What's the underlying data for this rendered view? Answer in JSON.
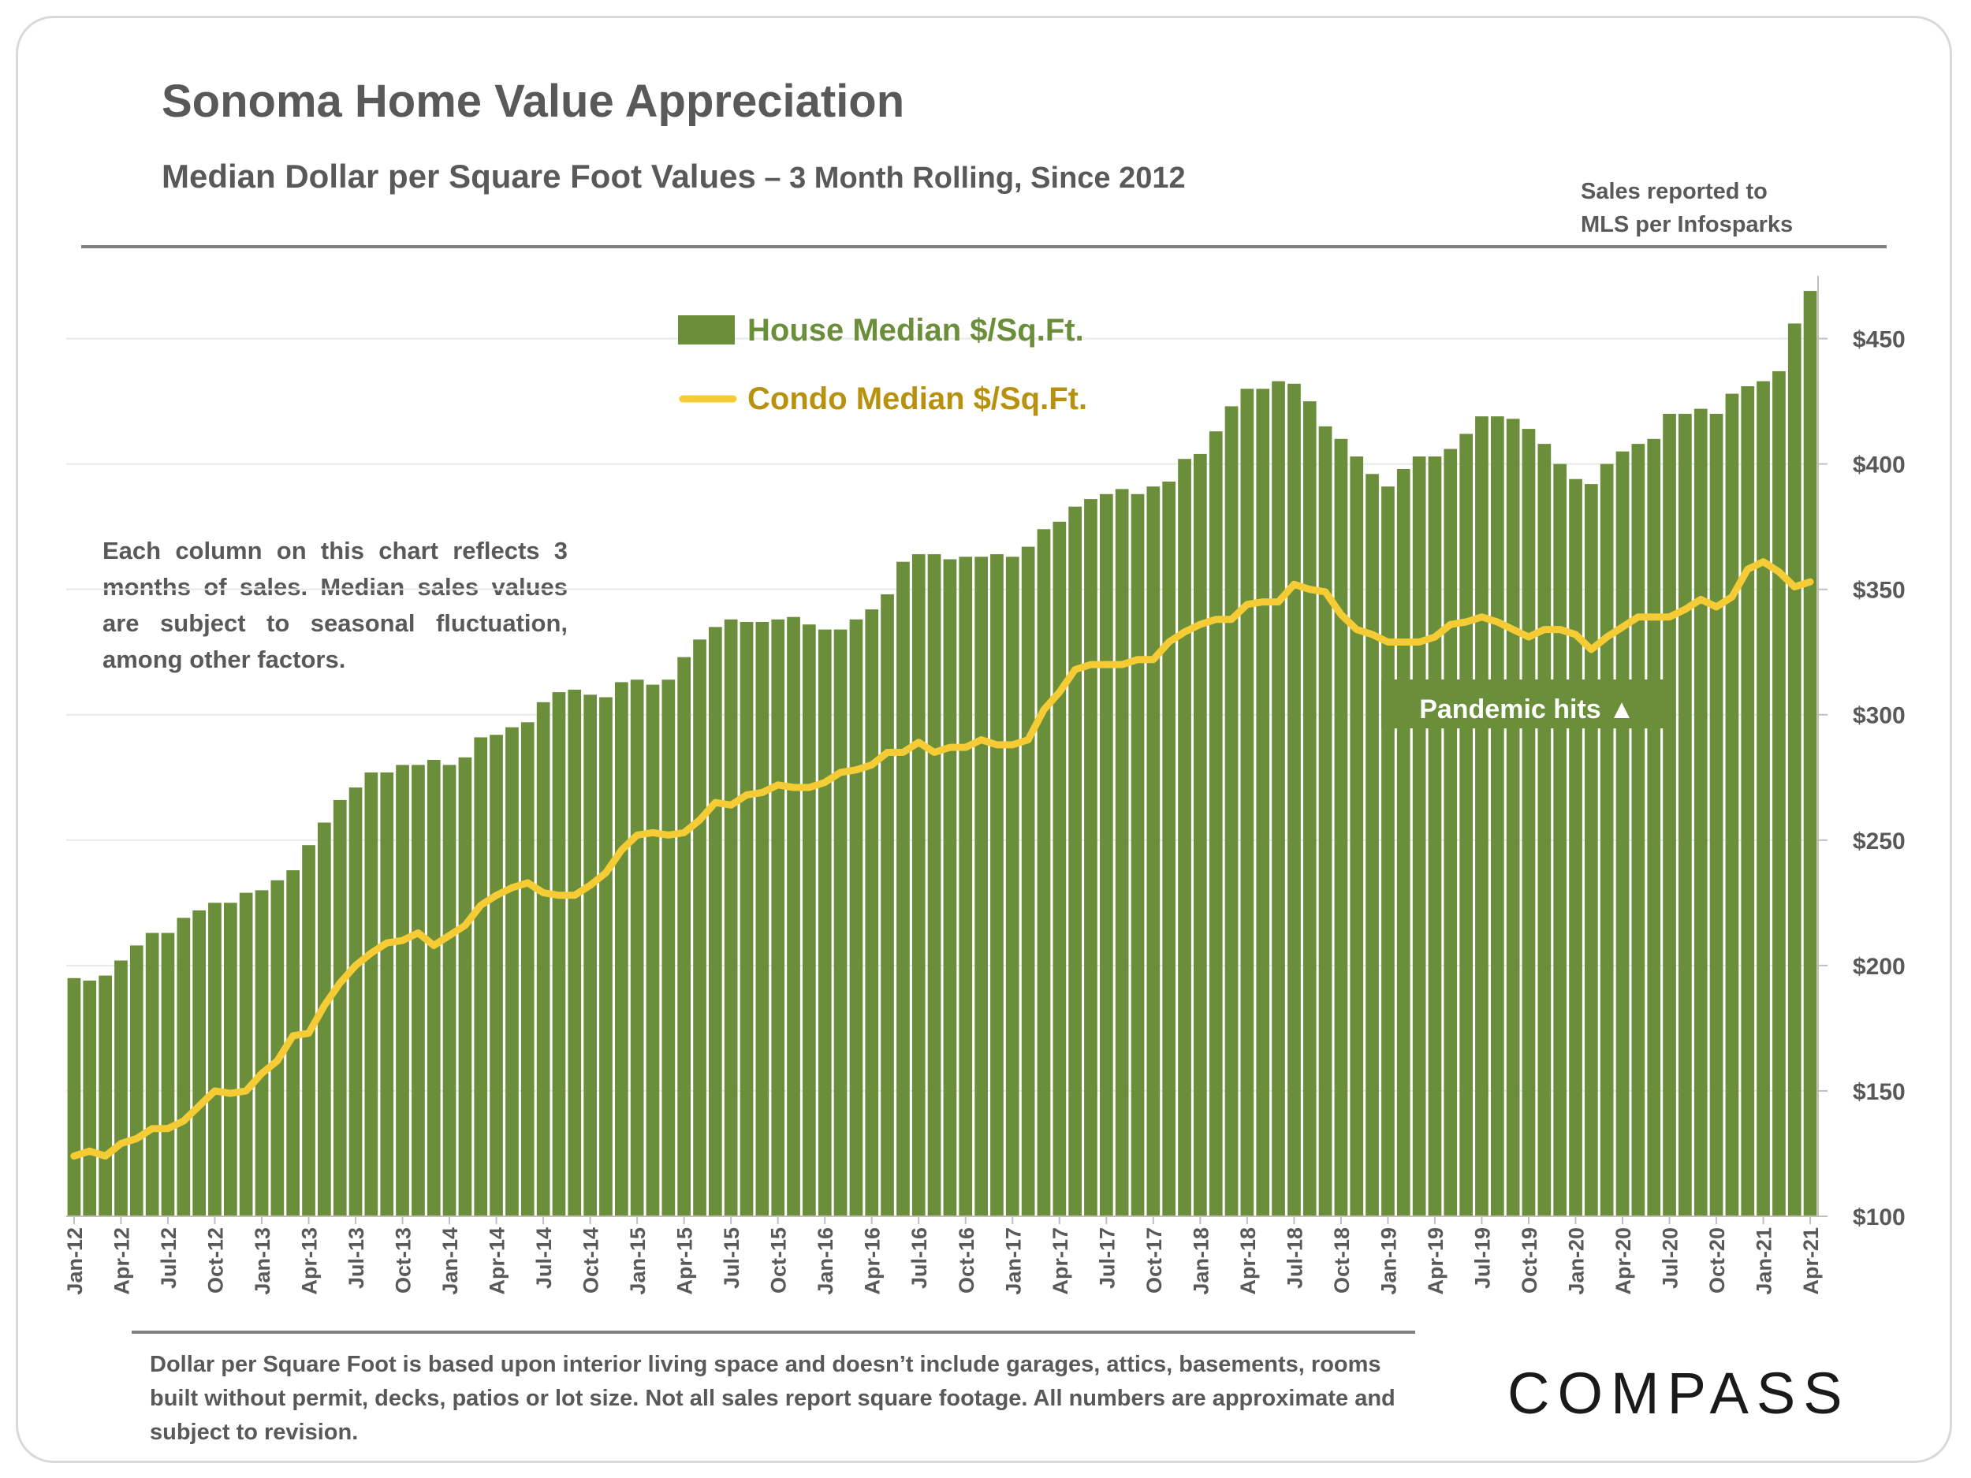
{
  "header": {
    "title": "Sonoma Home Value Appreciation",
    "subtitle_main": "Median Dollar per Square Foot Values",
    "subtitle_suffix": " – 3 Month Rolling, Since 2012",
    "source_line1": "Sales reported to",
    "source_line2": "MLS per Infosparks"
  },
  "note": "Each column on this chart reflects 3 months of sales. Median sales values are subject to seasonal fluctuation, among other factors.",
  "footnote": "Dollar per Square Foot is based upon interior living space and doesn’t include garages, attics, basements, rooms built without permit, decks, patios or lot size. Not all sales report square footage. All numbers are approximate and subject to revision.",
  "brand": "COMPASS",
  "colors": {
    "bar": "#6b8e3a",
    "line": "#f5cc35",
    "house_legend_text": "#6b8e3a",
    "condo_legend_text": "#b8920f",
    "annotation_bg": "#6b8e3a"
  },
  "chart_data": {
    "type": "bar",
    "grid": true,
    "legend_position": "top-center",
    "ylim": [
      100,
      475
    ],
    "y_axis_side": "right",
    "y_ticks": [
      "$100",
      "$150",
      "$200",
      "$250",
      "$300",
      "$350",
      "$400",
      "$450"
    ],
    "x_tick_labels": [
      "Jan-12",
      "Apr-12",
      "Jul-12",
      "Oct-12",
      "Jan-13",
      "Apr-13",
      "Jul-13",
      "Oct-13",
      "Jan-14",
      "Apr-14",
      "Jul-14",
      "Oct-14",
      "Jan-15",
      "Apr-15",
      "Jul-15",
      "Oct-15",
      "Jan-16",
      "Apr-16",
      "Jul-16",
      "Oct-16",
      "Jan-17",
      "Apr-17",
      "Jul-17",
      "Oct-17",
      "Jan-18",
      "Apr-18",
      "Jul-18",
      "Oct-18",
      "Jan-19",
      "Apr-19",
      "Jul-19",
      "Oct-19",
      "Jan-20",
      "Apr-20",
      "Jul-20",
      "Oct-20",
      "Jan-21",
      "Apr-21"
    ],
    "annotation": "Pandemic hits ▲",
    "series": [
      {
        "name": "House Median $/Sq.Ft.",
        "kind": "bar",
        "values": [
          195,
          194,
          196,
          202,
          208,
          213,
          213,
          219,
          222,
          225,
          225,
          229,
          230,
          234,
          238,
          248,
          257,
          266,
          271,
          277,
          277,
          280,
          280,
          282,
          280,
          283,
          291,
          292,
          295,
          297,
          305,
          309,
          310,
          308,
          307,
          313,
          314,
          312,
          314,
          323,
          330,
          335,
          338,
          337,
          337,
          338,
          339,
          336,
          334,
          334,
          338,
          342,
          348,
          361,
          364,
          364,
          362,
          363,
          363,
          364,
          363,
          367,
          374,
          377,
          383,
          386,
          388,
          390,
          388,
          391,
          393,
          402,
          404,
          413,
          423,
          430,
          430,
          433,
          432,
          425,
          415,
          410,
          403,
          396,
          391,
          398,
          403,
          403,
          406,
          412,
          419,
          419,
          418,
          414,
          408,
          400,
          394,
          392,
          400,
          405,
          408,
          410,
          420,
          420,
          422,
          420,
          428,
          431,
          433,
          437,
          456,
          469
        ]
      },
      {
        "name": "Condo Median $/Sq.Ft.",
        "kind": "line",
        "values": [
          124,
          126,
          124,
          129,
          131,
          135,
          135,
          138,
          144,
          150,
          149,
          150,
          157,
          162,
          172,
          173,
          184,
          193,
          200,
          205,
          209,
          210,
          213,
          208,
          212,
          216,
          224,
          228,
          231,
          233,
          229,
          228,
          228,
          232,
          237,
          246,
          252,
          253,
          252,
          253,
          258,
          265,
          264,
          268,
          269,
          272,
          271,
          271,
          273,
          277,
          278,
          280,
          285,
          285,
          289,
          285,
          287,
          287,
          290,
          288,
          288,
          290,
          302,
          309,
          318,
          320,
          320,
          320,
          322,
          322,
          329,
          333,
          336,
          338,
          338,
          344,
          345,
          345,
          352,
          350,
          349,
          340,
          334,
          332,
          329,
          329,
          329,
          331,
          336,
          337,
          339,
          337,
          334,
          331,
          334,
          334,
          332,
          326,
          331,
          335,
          339,
          339,
          339,
          342,
          346,
          343,
          347,
          358,
          361,
          357,
          351,
          353
        ]
      }
    ]
  }
}
